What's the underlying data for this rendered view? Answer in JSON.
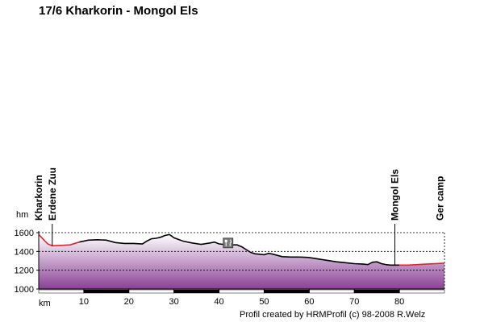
{
  "title": "17/6 Kharkorin - Mongol Els",
  "credit": "Profil created by HRMProfil (c) 98-2008 R.Welz",
  "icons": {
    "waypoint_marker": "restaurant-fork-knife-icon"
  },
  "colors": {
    "profile_line": "#000000",
    "highlight_line": "#e8202a",
    "fill_top": "#ffffff",
    "fill_bottom": "#8a3f96",
    "grid": "#000000"
  },
  "chart_data": {
    "type": "area",
    "title": "17/6 Kharkorin - Mongol Els",
    "xlabel": "km",
    "ylabel": "hm",
    "xlim": [
      0,
      90
    ],
    "ylim": [
      1000,
      1600
    ],
    "x_ticks": [
      {
        "value": 10,
        "label": "10"
      },
      {
        "value": 20,
        "label": "20"
      },
      {
        "value": 30,
        "label": "30"
      },
      {
        "value": 40,
        "label": "40"
      },
      {
        "value": 50,
        "label": "50"
      },
      {
        "value": 60,
        "label": "60"
      },
      {
        "value": 70,
        "label": "70"
      },
      {
        "value": 80,
        "label": "80"
      }
    ],
    "y_ticks": [
      {
        "value": 1000,
        "label": "1000"
      },
      {
        "value": 1200,
        "label": "1200"
      },
      {
        "value": 1400,
        "label": "1400"
      },
      {
        "value": 1600,
        "label": "1600"
      }
    ],
    "grid": true,
    "series": [
      {
        "x": [
          0,
          1,
          2,
          3,
          5,
          7,
          9,
          11,
          13,
          15,
          17,
          19,
          21,
          23,
          24,
          25,
          26,
          27,
          28,
          29,
          30,
          32,
          34,
          36,
          38,
          39,
          40,
          42,
          44,
          45,
          46,
          47,
          48,
          49,
          50,
          51,
          52,
          54,
          56,
          58,
          60,
          62,
          64,
          66,
          68,
          70,
          72,
          73,
          74,
          75,
          76,
          77,
          78,
          80,
          82,
          84,
          86,
          88,
          90
        ],
        "y": [
          1580,
          1530,
          1480,
          1460,
          1465,
          1470,
          1500,
          1520,
          1525,
          1520,
          1495,
          1485,
          1485,
          1480,
          1510,
          1535,
          1540,
          1550,
          1570,
          1580,
          1545,
          1510,
          1490,
          1475,
          1490,
          1500,
          1480,
          1470,
          1470,
          1450,
          1420,
          1390,
          1375,
          1370,
          1365,
          1380,
          1370,
          1345,
          1340,
          1340,
          1335,
          1320,
          1305,
          1290,
          1280,
          1270,
          1265,
          1260,
          1285,
          1290,
          1270,
          1260,
          1255,
          1255,
          1255,
          1260,
          1265,
          1270,
          1275
        ]
      }
    ],
    "highlight_ranges": [
      [
        0,
        10
      ],
      [
        80,
        90
      ]
    ],
    "waypoints": [
      {
        "km": 0,
        "name": "Kharkorin"
      },
      {
        "km": 3,
        "name": "Erdene Zuu"
      },
      {
        "km": 79,
        "name": "Mongol Els"
      },
      {
        "km": 89,
        "name": "Ger camp"
      }
    ],
    "markers": [
      {
        "km": 42,
        "elevation": 1490,
        "icon": "restaurant-fork-knife-icon"
      }
    ]
  }
}
